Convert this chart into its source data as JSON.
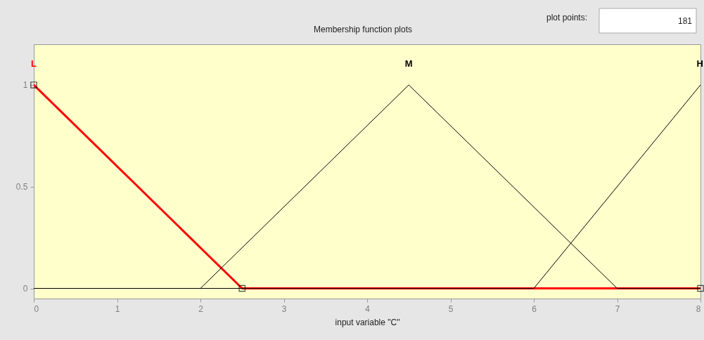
{
  "chart_data": {
    "type": "line",
    "title": "Membership function plots",
    "xlabel": "input variable \"C\"",
    "annotations": [
      "plot points:",
      "181"
    ],
    "xlim": [
      0,
      8
    ],
    "xticks": [
      0,
      1,
      2,
      3,
      4,
      5,
      6,
      7,
      8
    ],
    "ylim": [
      -0.05,
      1.2
    ],
    "yticks": [
      0,
      0.5,
      1
    ],
    "grid": false,
    "line_style": "solid",
    "series": [
      {
        "name": "L",
        "color": "#ff0000",
        "x": [
          0,
          2.5,
          8
        ],
        "values": [
          1,
          0,
          0
        ],
        "marker": "square"
      },
      {
        "name": "M",
        "color": "#000000",
        "x": [
          0,
          2,
          4.5,
          7,
          8
        ],
        "values": [
          0,
          0,
          1,
          0,
          0
        ],
        "marker": "none"
      },
      {
        "name": "H",
        "color": "#000000",
        "x": [
          0,
          6,
          8
        ],
        "values": [
          0,
          0,
          1
        ],
        "marker": "none"
      }
    ]
  }
}
